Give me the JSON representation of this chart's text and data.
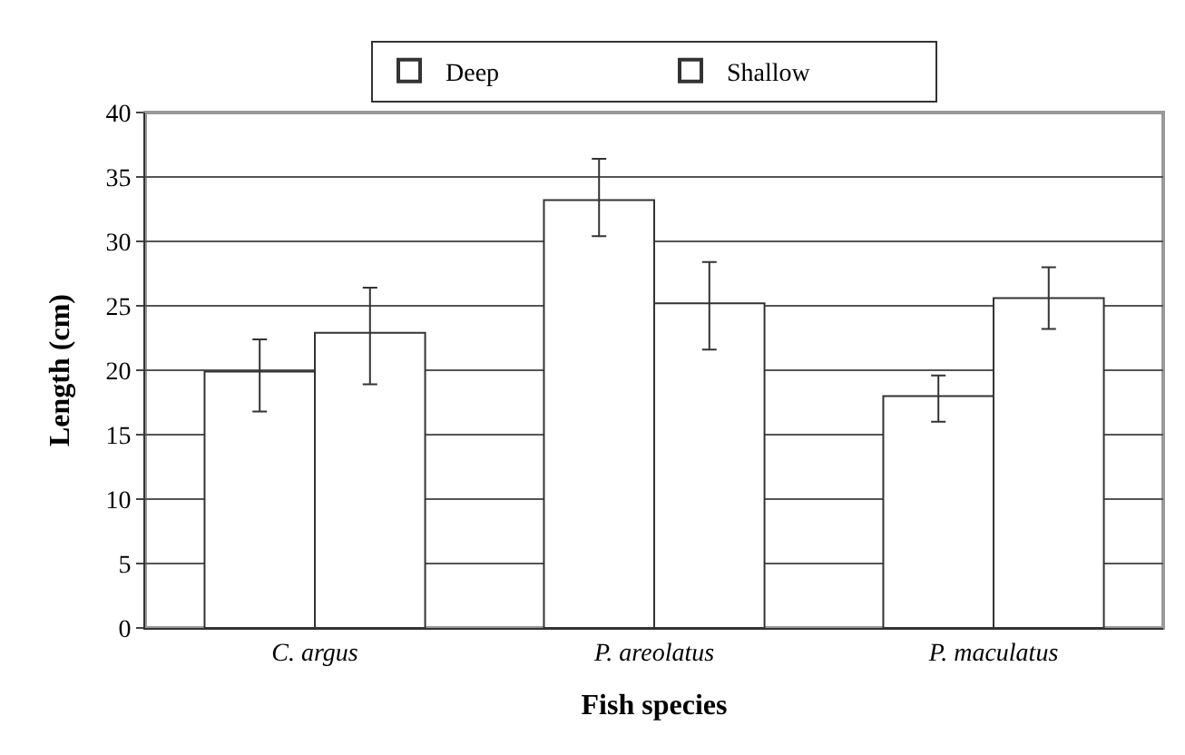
{
  "chart_data": {
    "type": "bar",
    "xlabel": "Fish species",
    "ylabel": "Length (cm)",
    "categories": [
      "C. argus",
      "P. areolatus",
      "P. maculatus"
    ],
    "series": [
      {
        "name": "Deep",
        "color": "#ffffff",
        "values": [
          19.9,
          33.2,
          18.0
        ],
        "errors": [
          [
            16.8,
            22.4
          ],
          [
            30.4,
            36.4
          ],
          [
            16.0,
            19.6
          ]
        ]
      },
      {
        "name": "Shallow",
        "color": "#ffffff",
        "values": [
          22.9,
          25.2,
          25.6
        ],
        "errors": [
          [
            18.9,
            26.4
          ],
          [
            21.6,
            28.4
          ],
          [
            23.2,
            28.0
          ]
        ]
      }
    ],
    "ylim": [
      0,
      40
    ],
    "yticks": [
      0,
      5,
      10,
      15,
      20,
      25,
      30,
      35,
      40
    ],
    "grid": "y",
    "legend": "top"
  }
}
